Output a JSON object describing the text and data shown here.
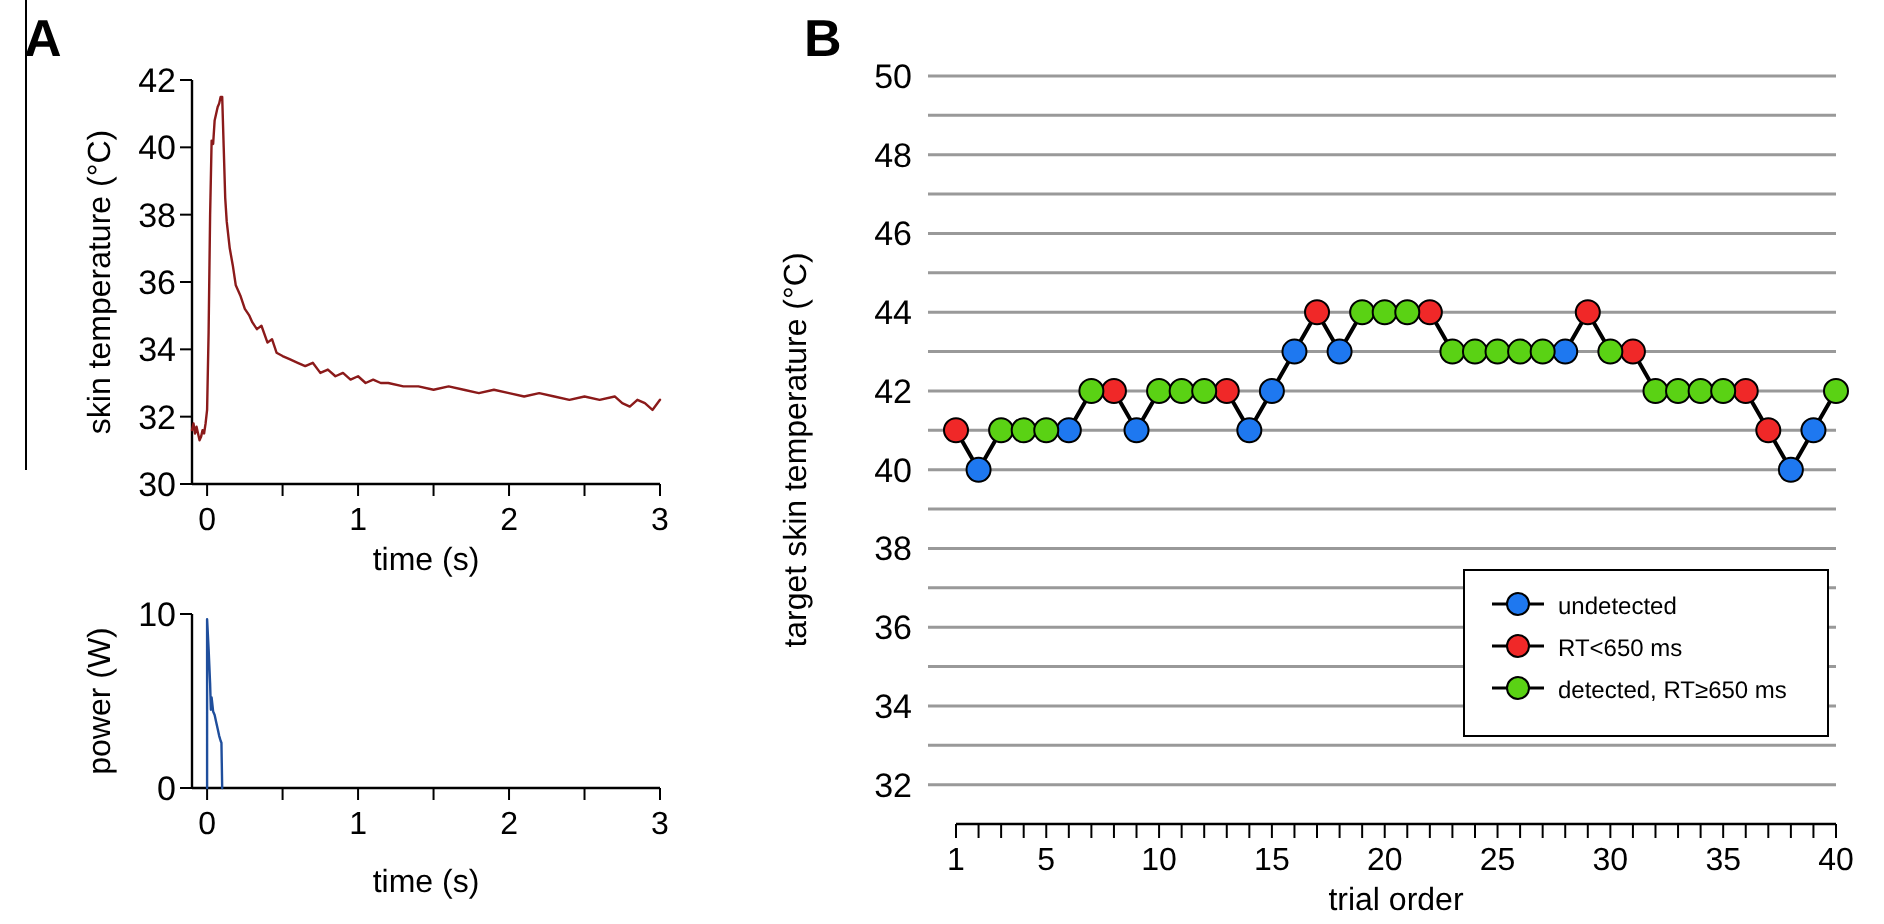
{
  "chart_data": [
    {
      "type": "line",
      "title": "A",
      "ylabel": "skin temperature (°C)",
      "xlabel": "time (s)",
      "xlim": [
        -0.1,
        3
      ],
      "ylim": [
        30,
        42
      ],
      "xticks": [
        0,
        {
          "value": 0.5,
          "label": null
        },
        1,
        {
          "value": 1.5,
          "label": null
        },
        2,
        {
          "value": 2.5,
          "label": null
        },
        3
      ],
      "yticks": [
        30,
        32,
        34,
        36,
        38,
        40,
        42
      ],
      "series": [
        {
          "color": "#8b1a1a",
          "x": [
            -0.1,
            -0.09,
            -0.08,
            -0.07,
            -0.06,
            -0.05,
            -0.04,
            -0.03,
            -0.02,
            -0.01,
            0,
            0.01,
            0.02,
            0.03,
            0.04,
            0.05,
            0.06,
            0.07,
            0.08,
            0.09,
            0.1,
            0.11,
            0.12,
            0.13,
            0.15,
            0.17,
            0.19,
            0.22,
            0.25,
            0.28,
            0.3,
            0.33,
            0.36,
            0.4,
            0.43,
            0.46,
            0.5,
            0.55,
            0.6,
            0.65,
            0.7,
            0.75,
            0.8,
            0.85,
            0.9,
            0.95,
            1.0,
            1.05,
            1.1,
            1.15,
            1.2,
            1.3,
            1.4,
            1.5,
            1.6,
            1.7,
            1.8,
            1.9,
            2.0,
            2.1,
            2.2,
            2.3,
            2.4,
            2.5,
            2.6,
            2.7,
            2.75,
            2.8,
            2.85,
            2.9,
            2.95,
            3.0
          ],
          "values": [
            31.6,
            31.8,
            31.5,
            31.7,
            31.5,
            31.3,
            31.4,
            31.6,
            31.5,
            31.8,
            32.2,
            34.5,
            38.0,
            40.2,
            40.1,
            40.8,
            41.0,
            41.2,
            41.3,
            41.5,
            41.5,
            40.0,
            38.5,
            37.8,
            37.0,
            36.5,
            35.9,
            35.6,
            35.2,
            35.0,
            34.8,
            34.6,
            34.7,
            34.2,
            34.3,
            33.9,
            33.8,
            33.7,
            33.6,
            33.5,
            33.6,
            33.3,
            33.4,
            33.2,
            33.3,
            33.1,
            33.2,
            33.0,
            33.1,
            33.0,
            33.0,
            32.9,
            32.9,
            32.8,
            32.9,
            32.8,
            32.7,
            32.8,
            32.7,
            32.6,
            32.7,
            32.6,
            32.5,
            32.6,
            32.5,
            32.6,
            32.4,
            32.3,
            32.5,
            32.4,
            32.2,
            32.5
          ]
        }
      ]
    },
    {
      "type": "line",
      "ylabel": "power (W)",
      "xlabel": "time (s)",
      "xlim": [
        -0.1,
        3
      ],
      "ylim": [
        0,
        10
      ],
      "xticks": [
        0,
        {
          "value": 0.5,
          "label": null
        },
        1,
        {
          "value": 1.5,
          "label": null
        },
        2,
        {
          "value": 2.5,
          "label": null
        },
        3
      ],
      "yticks": [
        0,
        10
      ],
      "series": [
        {
          "color": "#1f4e9c",
          "x": [
            0,
            0,
            0.01,
            0.02,
            0.025,
            0.03,
            0.04,
            0.05,
            0.06,
            0.07,
            0.08,
            0.09,
            0.095,
            0.1
          ],
          "values": [
            0,
            9.7,
            8.0,
            6.0,
            4.5,
            5.2,
            4.4,
            4.2,
            3.8,
            3.4,
            3.0,
            2.7,
            2.6,
            0
          ]
        }
      ]
    },
    {
      "type": "line",
      "title": "B",
      "ylabel": "target skin temperature (°C)",
      "xlabel": "trial order",
      "xlim": [
        1,
        40
      ],
      "ylim": [
        31,
        50
      ],
      "xticks": [
        1,
        {
          "value": 2,
          "label": null
        },
        {
          "value": 3,
          "label": null
        },
        {
          "value": 4,
          "label": null
        },
        5,
        {
          "value": 6,
          "label": null
        },
        {
          "value": 7,
          "label": null
        },
        {
          "value": 8,
          "label": null
        },
        {
          "value": 9,
          "label": null
        },
        10,
        {
          "value": 11,
          "label": null
        },
        {
          "value": 12,
          "label": null
        },
        {
          "value": 13,
          "label": null
        },
        {
          "value": 14,
          "label": null
        },
        15,
        {
          "value": 16,
          "label": null
        },
        {
          "value": 17,
          "label": null
        },
        {
          "value": 18,
          "label": null
        },
        {
          "value": 19,
          "label": null
        },
        20,
        {
          "value": 21,
          "label": null
        },
        {
          "value": 22,
          "label": null
        },
        {
          "value": 23,
          "label": null
        },
        {
          "value": 24,
          "label": null
        },
        25,
        {
          "value": 26,
          "label": null
        },
        {
          "value": 27,
          "label": null
        },
        {
          "value": 28,
          "label": null
        },
        {
          "value": 29,
          "label": null
        },
        30,
        {
          "value": 31,
          "label": null
        },
        {
          "value": 32,
          "label": null
        },
        {
          "value": 33,
          "label": null
        },
        {
          "value": 34,
          "label": null
        },
        35,
        {
          "value": 36,
          "label": null
        },
        {
          "value": 37,
          "label": null
        },
        {
          "value": 38,
          "label": null
        },
        {
          "value": 39,
          "label": null
        },
        40
      ],
      "yticks": [
        32,
        {
          "value": 33,
          "label": null
        },
        34,
        {
          "value": 35,
          "label": null
        },
        36,
        {
          "value": 37,
          "label": null
        },
        38,
        {
          "value": 39,
          "label": null
        },
        40,
        {
          "value": 41,
          "label": null
        },
        42,
        {
          "value": 43,
          "label": null
        },
        44,
        {
          "value": 45,
          "label": null
        },
        46,
        {
          "value": 47,
          "label": null
        },
        48,
        {
          "value": 49,
          "label": null
        },
        50
      ],
      "grid": "y",
      "legend": "right",
      "x": [
        1,
        2,
        3,
        4,
        5,
        6,
        7,
        8,
        9,
        10,
        11,
        12,
        13,
        14,
        15,
        16,
        17,
        18,
        19,
        20,
        21,
        22,
        23,
        24,
        25,
        26,
        27,
        28,
        29,
        30,
        31,
        32,
        33,
        34,
        35,
        36,
        37,
        38,
        39,
        40
      ],
      "series": [
        {
          "color": "#000000",
          "values": [
            41,
            40,
            41,
            41,
            41,
            41,
            42,
            42,
            41,
            42,
            42,
            42,
            42,
            41,
            42,
            43,
            44,
            43,
            44,
            44,
            44,
            44,
            43,
            43,
            43,
            43,
            43,
            43,
            44,
            43,
            43,
            42,
            42,
            42,
            42,
            42,
            41,
            40,
            41,
            42
          ]
        },
        {
          "type": "scatter",
          "marker": "circle",
          "name": "undetected",
          "color": "#1e78f0",
          "values": [
            null,
            40,
            null,
            null,
            null,
            41,
            null,
            null,
            41,
            null,
            null,
            null,
            null,
            41,
            42,
            43,
            null,
            43,
            null,
            null,
            null,
            null,
            null,
            null,
            null,
            null,
            null,
            43,
            null,
            null,
            null,
            null,
            null,
            null,
            null,
            null,
            null,
            40,
            41,
            null
          ]
        },
        {
          "type": "scatter",
          "marker": "circle",
          "name": "RT<650 ms",
          "color": "#f02828",
          "values": [
            41,
            null,
            null,
            null,
            null,
            null,
            null,
            42,
            null,
            null,
            null,
            null,
            42,
            null,
            null,
            null,
            44,
            null,
            null,
            null,
            null,
            44,
            null,
            null,
            null,
            null,
            null,
            null,
            44,
            null,
            43,
            null,
            null,
            null,
            null,
            42,
            41,
            null,
            null,
            null
          ]
        },
        {
          "type": "scatter",
          "marker": "circle",
          "name": "detected, RT≥650 ms",
          "color": "#5ad214",
          "values": [
            null,
            null,
            41,
            41,
            41,
            null,
            42,
            null,
            null,
            42,
            42,
            42,
            null,
            null,
            null,
            null,
            null,
            null,
            44,
            44,
            44,
            null,
            43,
            43,
            43,
            43,
            43,
            null,
            null,
            43,
            null,
            42,
            42,
            42,
            42,
            null,
            null,
            null,
            null,
            42
          ]
        }
      ]
    }
  ]
}
